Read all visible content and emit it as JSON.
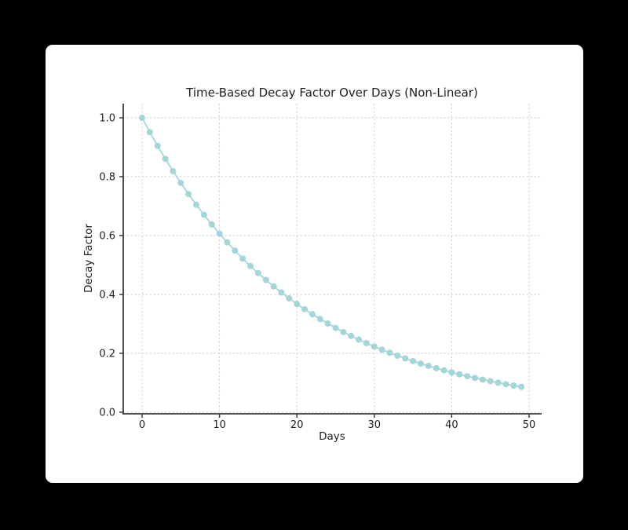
{
  "figure": {
    "page_background": "#000000",
    "card_background": "#ffffff"
  },
  "chart_data": {
    "type": "line",
    "title": "Time-Based Decay Factor Over Days (Non-Linear)",
    "xlabel": "Days",
    "ylabel": "Decay Factor",
    "x": [
      0,
      1,
      2,
      3,
      4,
      5,
      6,
      7,
      8,
      9,
      10,
      11,
      12,
      13,
      14,
      15,
      16,
      17,
      18,
      19,
      20,
      21,
      22,
      23,
      24,
      25,
      26,
      27,
      28,
      29,
      30,
      31,
      32,
      33,
      34,
      35,
      36,
      37,
      38,
      39,
      40,
      41,
      42,
      43,
      44,
      45,
      46,
      47,
      48,
      49
    ],
    "series": [
      {
        "name": "Decay Factor",
        "values": [
          1.0,
          0.9512,
          0.9048,
          0.8607,
          0.8187,
          0.7788,
          0.7408,
          0.7047,
          0.6703,
          0.6376,
          0.6065,
          0.5769,
          0.5488,
          0.522,
          0.4966,
          0.4724,
          0.4493,
          0.4274,
          0.4066,
          0.3867,
          0.3679,
          0.3499,
          0.3329,
          0.3166,
          0.3012,
          0.2865,
          0.2725,
          0.2592,
          0.2466,
          0.2346,
          0.2231,
          0.2122,
          0.2019,
          0.192,
          0.1827,
          0.1738,
          0.1653,
          0.1572,
          0.1496,
          0.1423,
          0.1353,
          0.1287,
          0.1225,
          0.1165,
          0.1108,
          0.1054,
          0.1003,
          0.0954,
          0.0907,
          0.0863
        ]
      }
    ],
    "xticks": [
      0,
      10,
      20,
      30,
      40,
      50
    ],
    "yticks": [
      0.0,
      0.2,
      0.4,
      0.6,
      0.8,
      1.0
    ],
    "ytick_labels": [
      "0.0",
      "0.2",
      "0.4",
      "0.6",
      "0.8",
      "1.0"
    ],
    "xlim": [
      -2.4,
      52.2
    ],
    "ylim": [
      -0.005,
      1.048
    ],
    "grid": true,
    "grid_style": "dashed",
    "legend_position": "none",
    "line_color": "#a3d6d9",
    "marker": "o",
    "grid_color": "#cfcfcf",
    "axis_color": "#3a3a3a",
    "text_color": "#1f1f1f"
  }
}
